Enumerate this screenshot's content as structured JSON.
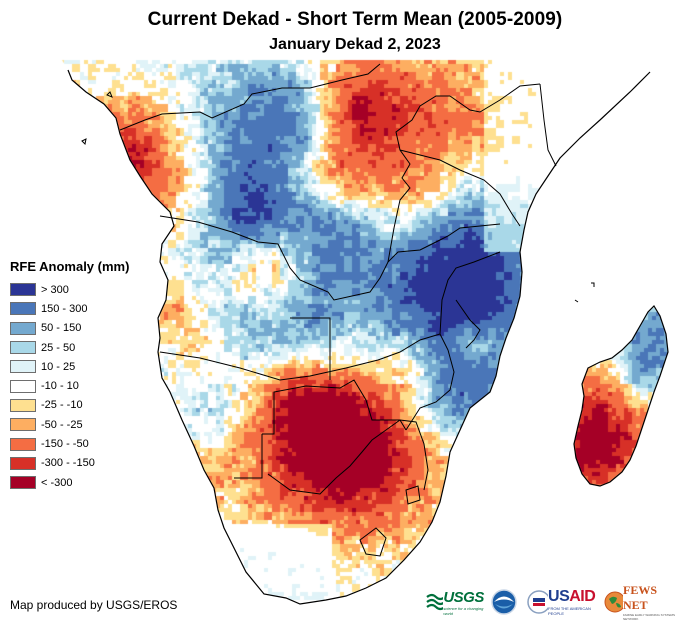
{
  "header": {
    "title": "Current Dekad - Short Term Mean (2005-2009)",
    "subtitle": "January Dekad 2, 2023"
  },
  "legend": {
    "title": "RFE Anomaly (mm)",
    "items": [
      {
        "label": "> 300",
        "color": "#2b3595"
      },
      {
        "label": "150 - 300",
        "color": "#4a76b8"
      },
      {
        "label": "50 - 150",
        "color": "#74a9cf"
      },
      {
        "label": "25 - 50",
        "color": "#a9d8e8"
      },
      {
        "label": "10 - 25",
        "color": "#e0f3f8"
      },
      {
        "label": "-10 - 10",
        "color": "#ffffff"
      },
      {
        "label": "-25 - -10",
        "color": "#fee090"
      },
      {
        "label": "-50 - -25",
        "color": "#fdae61"
      },
      {
        "label": "-150 - -50",
        "color": "#f46d43"
      },
      {
        "label": "-300 - -150",
        "color": "#d73027"
      },
      {
        "label": "< -300",
        "color": "#a50026"
      }
    ]
  },
  "map": {
    "region": "Central and Southern Africa with Madagascar",
    "variable": "RFE Anomaly (mm)",
    "boundary_color": "#000000"
  },
  "footer": {
    "credit": "Map produced by USGS/EROS",
    "logos": [
      {
        "name": "USGS",
        "text": "USGS",
        "tagline": "science for a changing world"
      },
      {
        "name": "NOAA",
        "text": "NOAA"
      },
      {
        "name": "USAID",
        "text": "USAID",
        "tagline": "FROM THE AMERICAN PEOPLE"
      },
      {
        "name": "FEWS NET",
        "text": "FEWS NET",
        "tagline": "FAMINE EARLY WARNING SYSTEMS NETWORK"
      }
    ]
  }
}
